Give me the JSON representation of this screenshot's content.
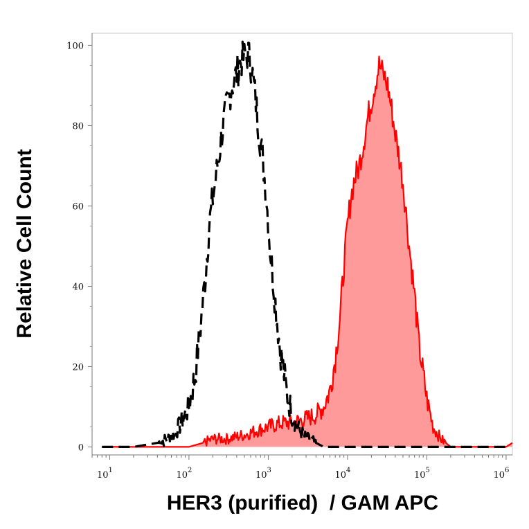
{
  "chart_data": {
    "type": "area",
    "title": "",
    "xlabel": "HER3 (purified)  / GAM APC",
    "ylabel": "Relative Cell Count",
    "x_scale": "log",
    "xlim": [
      6,
      1200000
    ],
    "ylim": [
      -2,
      103
    ],
    "grid": false,
    "legend": "none",
    "y_ticks": [
      {
        "value": 0,
        "label": "0"
      },
      {
        "value": 20,
        "label": "20"
      },
      {
        "value": 40,
        "label": "40"
      },
      {
        "value": 60,
        "label": "60"
      },
      {
        "value": 80,
        "label": "80"
      },
      {
        "value": 100,
        "label": "100"
      }
    ],
    "x_ticks": [
      {
        "value": 10,
        "base": "10",
        "exp": "1"
      },
      {
        "value": 100,
        "base": "10",
        "exp": "2"
      },
      {
        "value": 1000,
        "base": "10",
        "exp": "3"
      },
      {
        "value": 10000,
        "base": "10",
        "exp": "4"
      },
      {
        "value": 100000,
        "base": "10",
        "exp": "5"
      },
      {
        "value": 1000000,
        "base": "10",
        "exp": "6"
      }
    ],
    "series": [
      {
        "style": "dashed",
        "color": "#000000",
        "filled": false,
        "x": [
          8,
          20,
          40,
          55,
          75,
          100,
          120,
          140,
          160,
          180,
          200,
          230,
          260,
          300,
          350,
          400,
          450,
          500,
          560,
          620,
          680,
          750,
          850,
          950,
          1050,
          1200,
          1400,
          1700,
          2000,
          2500,
          3000,
          4000,
          5000,
          7000,
          10000,
          100000,
          1000000
        ],
        "y": [
          0,
          0,
          1,
          2,
          5,
          10,
          18,
          30,
          42,
          55,
          62,
          70,
          78,
          85,
          90,
          93,
          96,
          97,
          98,
          94,
          88,
          80,
          72,
          62,
          50,
          38,
          25,
          14,
          8,
          4,
          2,
          1,
          0,
          0,
          0,
          0,
          0
        ]
      },
      {
        "style": "solid",
        "color": "#ff0000",
        "fill": "#ff9a9a",
        "filled": true,
        "x": [
          8,
          50,
          100,
          150,
          200,
          300,
          500,
          700,
          1000,
          1500,
          2000,
          3000,
          4000,
          5000,
          6000,
          7000,
          8000,
          9000,
          10000,
          11000,
          12000,
          14000,
          16000,
          18000,
          20000,
          22000,
          25000,
          28000,
          32000,
          36000,
          40000,
          45000,
          50000,
          55000,
          60000,
          70000,
          80000,
          100000,
          120000,
          150000,
          200000,
          1000000,
          1200000
        ],
        "y": [
          0,
          0,
          0,
          1,
          2,
          2,
          3,
          4,
          5,
          6,
          6,
          7,
          8,
          10,
          14,
          22,
          32,
          45,
          55,
          62,
          66,
          70,
          76,
          82,
          86,
          90,
          95,
          93,
          90,
          84,
          78,
          72,
          66,
          58,
          50,
          38,
          25,
          12,
          5,
          2,
          0,
          0,
          1
        ]
      }
    ]
  }
}
